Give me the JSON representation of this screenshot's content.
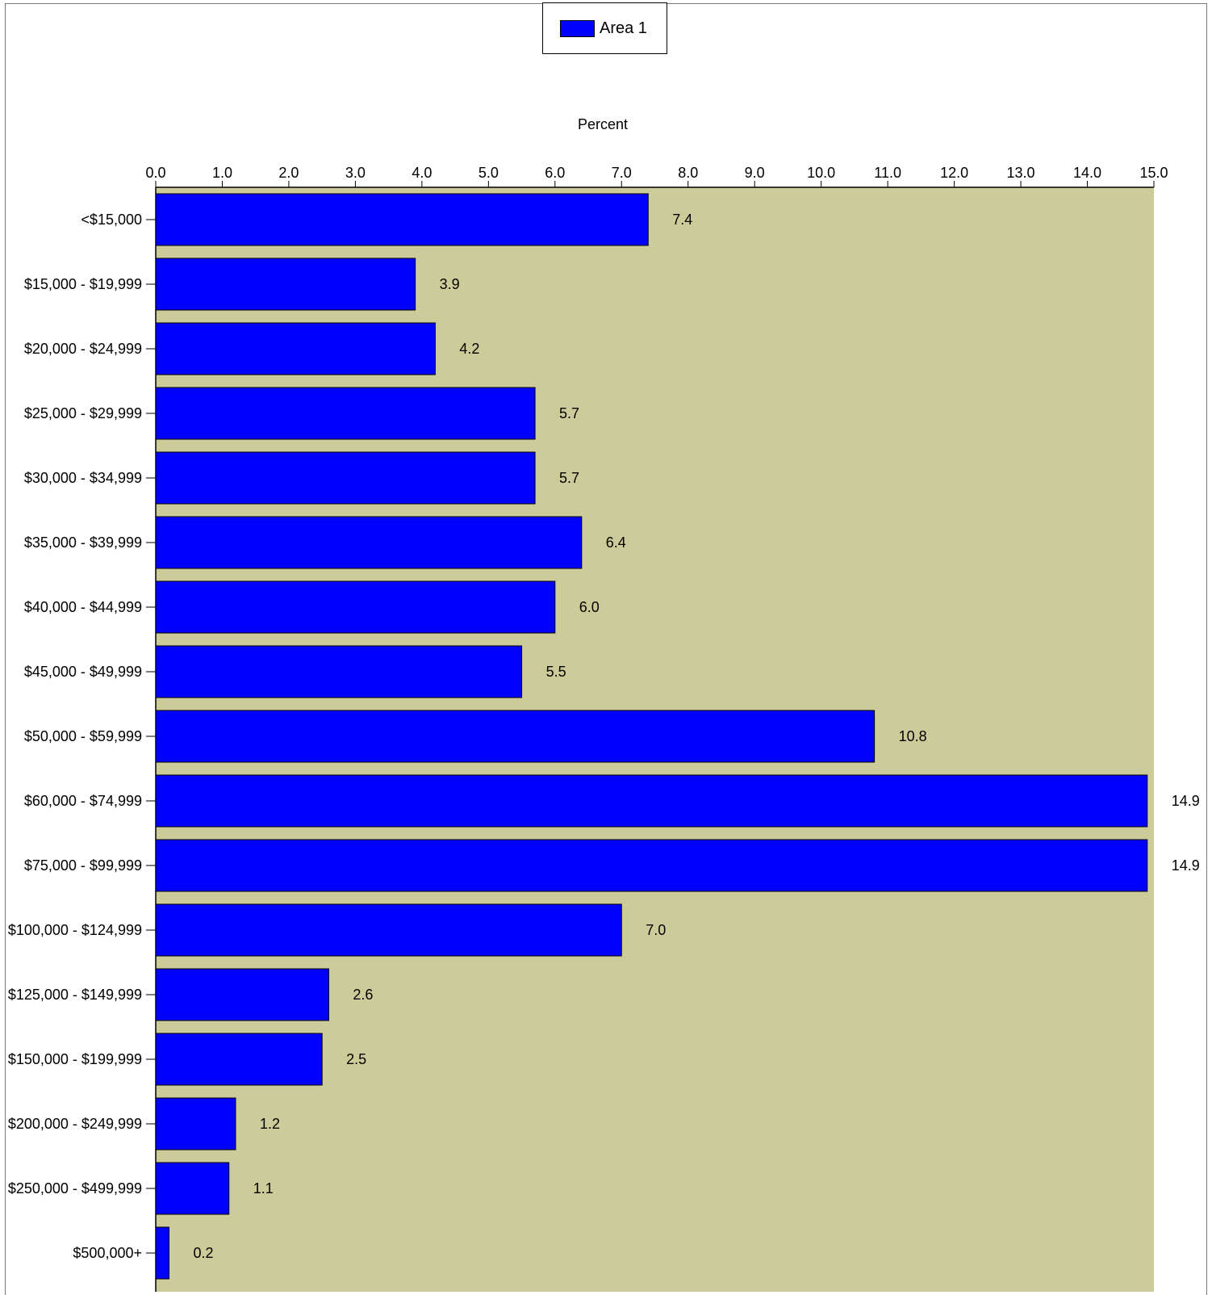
{
  "legend": {
    "label": "Area 1"
  },
  "colors": {
    "bar": "#0000ff",
    "plot_background": "#cccc9a",
    "bar_border": "#000000"
  },
  "chart_data": {
    "type": "bar",
    "orientation": "horizontal",
    "xlabel": "Percent",
    "xlim": [
      0,
      15
    ],
    "x_ticks": [
      "0.0",
      "1.0",
      "2.0",
      "3.0",
      "4.0",
      "5.0",
      "6.0",
      "7.0",
      "8.0",
      "9.0",
      "10.0",
      "11.0",
      "12.0",
      "13.0",
      "14.0",
      "15.0"
    ],
    "grid": false,
    "legend_position": "top-center",
    "categories": [
      "<$15,000",
      "$15,000 - $19,999",
      "$20,000 - $24,999",
      "$25,000 - $29,999",
      "$30,000 - $34,999",
      "$35,000 - $39,999",
      "$40,000 - $44,999",
      "$45,000 - $49,999",
      "$50,000 - $59,999",
      "$60,000 - $74,999",
      "$75,000 - $99,999",
      "$100,000 - $124,999",
      "$125,000 - $149,999",
      "$150,000 - $199,999",
      "$200,000 - $249,999",
      "$250,000 - $499,999",
      "$500,000+"
    ],
    "series": [
      {
        "name": "Area 1",
        "values": [
          7.4,
          3.9,
          4.2,
          5.7,
          5.7,
          6.4,
          6.0,
          5.5,
          10.8,
          14.9,
          14.9,
          7.0,
          2.6,
          2.5,
          1.2,
          1.1,
          0.2
        ],
        "value_labels": [
          "7.4",
          "3.9",
          "4.2",
          "5.7",
          "5.7",
          "6.4",
          "6.0",
          "5.5",
          "10.8",
          "14.9",
          "14.9",
          "7.0",
          "2.6",
          "2.5",
          "1.2",
          "1.1",
          "0.2"
        ]
      }
    ]
  }
}
